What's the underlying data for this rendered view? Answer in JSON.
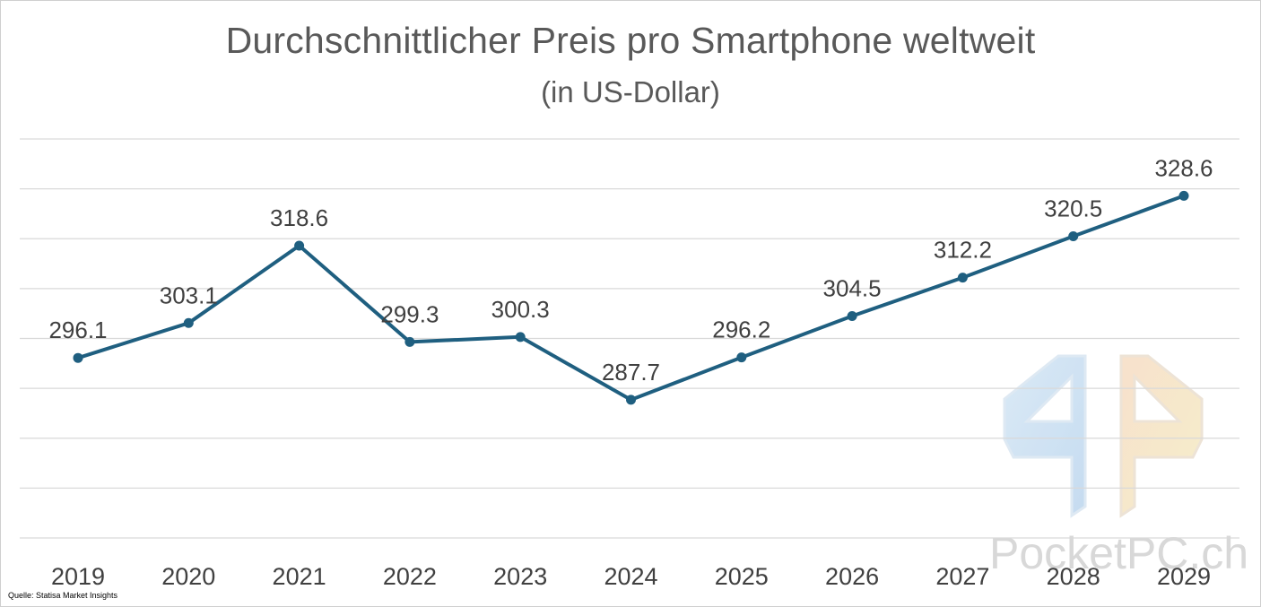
{
  "chart_data": {
    "type": "line",
    "title": "Durchschnittlicher Preis pro Smartphone weltweit",
    "subtitle": "(in US-Dollar)",
    "categories": [
      "2019",
      "2020",
      "2021",
      "2022",
      "2023",
      "2024",
      "2025",
      "2026",
      "2027",
      "2028",
      "2029"
    ],
    "series": [
      {
        "name": "Durchschnittlicher Preis",
        "values": [
          296.1,
          303.1,
          318.6,
          299.3,
          300.3,
          287.7,
          296.2,
          304.5,
          312.2,
          320.5,
          328.6
        ]
      }
    ],
    "value_labels": [
      "296.1",
      "303.1",
      "318.6",
      "299.3",
      "300.3",
      "287.7",
      "296.2",
      "304.5",
      "312.2",
      "320.5",
      "328.6"
    ],
    "xlabel": "",
    "ylabel": "",
    "ylim": [
      260,
      340
    ],
    "gridlines": [
      260,
      270,
      280,
      290,
      300,
      310,
      320,
      330,
      340
    ],
    "grid": true,
    "legend": "none",
    "line_color": "#1f5f80"
  },
  "source": "Quelle: Statisa Market Insights",
  "watermark": {
    "text": "PocketPC.ch",
    "icon": "pocketpc-logo-icon"
  }
}
